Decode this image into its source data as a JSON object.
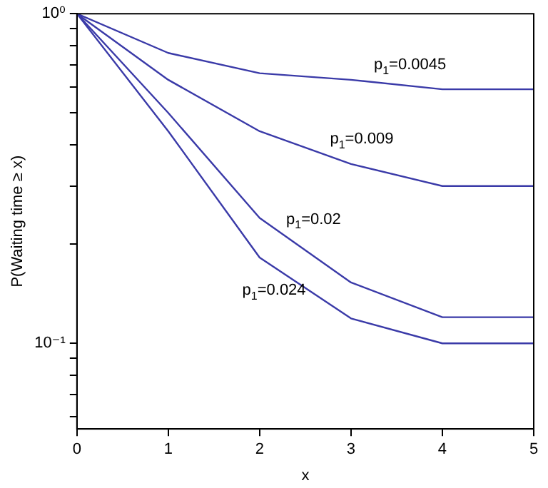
{
  "chart_data": {
    "type": "line",
    "xlabel": "x",
    "ylabel": "P(Waiting time ≥ x)",
    "log": "y",
    "grid": false,
    "legend": false,
    "marker": "none",
    "line_style": "solid",
    "x": [
      0,
      1,
      2,
      3,
      4,
      5
    ],
    "xlim": [
      0,
      5
    ],
    "xticks": [
      0,
      1,
      2,
      3,
      4,
      5
    ],
    "ylim": [
      0.055,
      1
    ],
    "yticks": [
      {
        "value": 0.06,
        "label": null
      },
      {
        "value": 0.07,
        "label": null
      },
      {
        "value": 0.08,
        "label": null
      },
      {
        "value": 0.09,
        "label": null
      },
      {
        "value": 0.1,
        "label": "10⁻¹"
      },
      {
        "value": 0.2,
        "label": null
      },
      {
        "value": 0.3,
        "label": null
      },
      {
        "value": 0.4,
        "label": null
      },
      {
        "value": 0.5,
        "label": null
      },
      {
        "value": 0.6,
        "label": null
      },
      {
        "value": 0.7,
        "label": null
      },
      {
        "value": 0.8,
        "label": null
      },
      {
        "value": 0.9,
        "label": null
      },
      {
        "value": 1,
        "label": "10⁰"
      }
    ],
    "series": [
      {
        "name": "p$_{1}$=0.0045",
        "color": "#3a3aa8",
        "values": [
          1,
          0.76,
          0.66,
          0.63,
          0.59,
          0.59
        ]
      },
      {
        "name": "p$_{1}$=0.009",
        "color": "#3a3aa8",
        "values": [
          1,
          0.63,
          0.44,
          0.35,
          0.3,
          0.3
        ]
      },
      {
        "name": "p$_{1}$=0.02",
        "color": "#3a3aa8",
        "values": [
          1,
          0.5,
          0.24,
          0.153,
          0.12,
          0.12
        ]
      },
      {
        "name": "p$_{1}$=0.024",
        "color": "#3a3aa8",
        "values": [
          1,
          0.44,
          0.182,
          0.119,
          0.1,
          0.1
        ]
      }
    ]
  }
}
